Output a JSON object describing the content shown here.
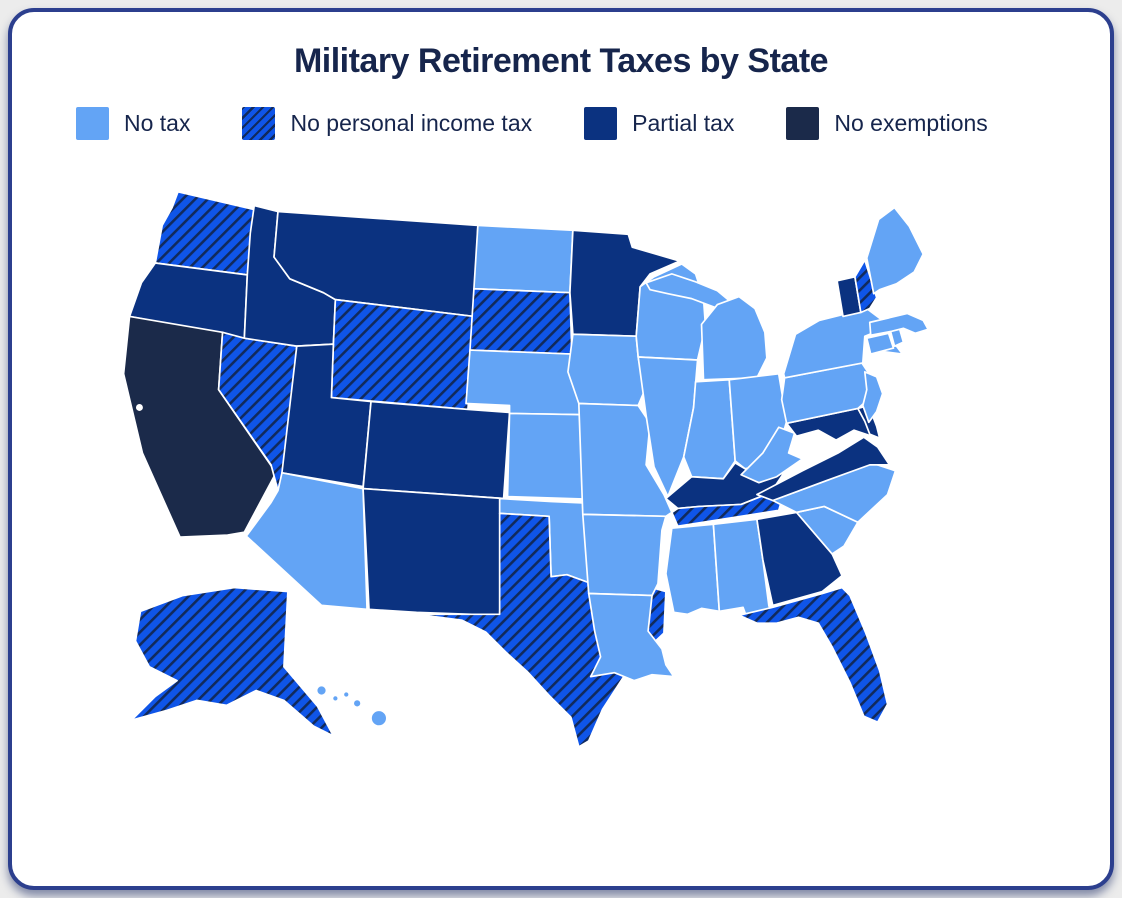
{
  "title": "Military Retirement Taxes by State",
  "legend": [
    {
      "id": "no_tax",
      "label": "No tax",
      "color": "#63A4F5",
      "hatched": false
    },
    {
      "id": "no_personal_income_tax",
      "label": "No personal income tax",
      "color": "#0F55E8",
      "hatched": true,
      "hatch_color": "#112A5C",
      "pattern": "diagonal-stripes"
    },
    {
      "id": "partial_tax",
      "label": "Partial tax",
      "color": "#0B3280",
      "hatched": false
    },
    {
      "id": "no_exemptions",
      "label": "No exemptions",
      "color": "#1B2A4A",
      "hatched": false
    }
  ],
  "colors": {
    "ink": "#16254c",
    "card_border": "#2c3f8e",
    "page_bg": "#ececec",
    "state_border": "#ffffff"
  },
  "map": {
    "states": [
      {
        "abbr": "WA",
        "name": "Washington",
        "category": "no_personal_income_tax"
      },
      {
        "abbr": "OR",
        "name": "Oregon",
        "category": "partial_tax"
      },
      {
        "abbr": "CA",
        "name": "California",
        "category": "no_exemptions"
      },
      {
        "abbr": "NV",
        "name": "Nevada",
        "category": "no_personal_income_tax"
      },
      {
        "abbr": "ID",
        "name": "Idaho",
        "category": "partial_tax"
      },
      {
        "abbr": "MT",
        "name": "Montana",
        "category": "partial_tax"
      },
      {
        "abbr": "WY",
        "name": "Wyoming",
        "category": "no_personal_income_tax"
      },
      {
        "abbr": "UT",
        "name": "Utah",
        "category": "partial_tax"
      },
      {
        "abbr": "CO",
        "name": "Colorado",
        "category": "partial_tax"
      },
      {
        "abbr": "AZ",
        "name": "Arizona",
        "category": "no_tax"
      },
      {
        "abbr": "NM",
        "name": "New Mexico",
        "category": "partial_tax"
      },
      {
        "abbr": "ND",
        "name": "North Dakota",
        "category": "no_tax"
      },
      {
        "abbr": "SD",
        "name": "South Dakota",
        "category": "no_personal_income_tax"
      },
      {
        "abbr": "NE",
        "name": "Nebraska",
        "category": "no_tax"
      },
      {
        "abbr": "KS",
        "name": "Kansas",
        "category": "no_tax"
      },
      {
        "abbr": "OK",
        "name": "Oklahoma",
        "category": "no_tax"
      },
      {
        "abbr": "TX",
        "name": "Texas",
        "category": "no_personal_income_tax"
      },
      {
        "abbr": "MN",
        "name": "Minnesota",
        "category": "partial_tax"
      },
      {
        "abbr": "IA",
        "name": "Iowa",
        "category": "no_tax"
      },
      {
        "abbr": "MO",
        "name": "Missouri",
        "category": "no_tax"
      },
      {
        "abbr": "AR",
        "name": "Arkansas",
        "category": "no_tax"
      },
      {
        "abbr": "LA",
        "name": "Louisiana",
        "category": "no_tax"
      },
      {
        "abbr": "WI",
        "name": "Wisconsin",
        "category": "no_tax"
      },
      {
        "abbr": "IL",
        "name": "Illinois",
        "category": "no_tax"
      },
      {
        "abbr": "MI",
        "name": "Michigan",
        "category": "no_tax"
      },
      {
        "abbr": "IN",
        "name": "Indiana",
        "category": "no_tax"
      },
      {
        "abbr": "OH",
        "name": "Ohio",
        "category": "no_tax"
      },
      {
        "abbr": "KY",
        "name": "Kentucky",
        "category": "partial_tax"
      },
      {
        "abbr": "TN",
        "name": "Tennessee",
        "category": "no_personal_income_tax"
      },
      {
        "abbr": "MS",
        "name": "Mississippi",
        "category": "no_tax"
      },
      {
        "abbr": "AL",
        "name": "Alabama",
        "category": "no_tax"
      },
      {
        "abbr": "GA",
        "name": "Georgia",
        "category": "partial_tax"
      },
      {
        "abbr": "FL",
        "name": "Florida",
        "category": "no_personal_income_tax"
      },
      {
        "abbr": "SC",
        "name": "South Carolina",
        "category": "no_tax"
      },
      {
        "abbr": "NC",
        "name": "North Carolina",
        "category": "no_tax"
      },
      {
        "abbr": "VA",
        "name": "Virginia",
        "category": "partial_tax"
      },
      {
        "abbr": "WV",
        "name": "West Virginia",
        "category": "no_tax"
      },
      {
        "abbr": "MD",
        "name": "Maryland",
        "category": "partial_tax"
      },
      {
        "abbr": "DE",
        "name": "Delaware",
        "category": "partial_tax"
      },
      {
        "abbr": "PA",
        "name": "Pennsylvania",
        "category": "no_tax"
      },
      {
        "abbr": "NJ",
        "name": "New Jersey",
        "category": "no_tax"
      },
      {
        "abbr": "NY",
        "name": "New York",
        "category": "no_tax"
      },
      {
        "abbr": "CT",
        "name": "Connecticut",
        "category": "no_tax"
      },
      {
        "abbr": "RI",
        "name": "Rhode Island",
        "category": "no_tax"
      },
      {
        "abbr": "MA",
        "name": "Massachusetts",
        "category": "no_tax"
      },
      {
        "abbr": "VT",
        "name": "Vermont",
        "category": "partial_tax"
      },
      {
        "abbr": "NH",
        "name": "New Hampshire",
        "category": "no_personal_income_tax"
      },
      {
        "abbr": "ME",
        "name": "Maine",
        "category": "no_tax"
      },
      {
        "abbr": "AK",
        "name": "Alaska",
        "category": "no_personal_income_tax"
      },
      {
        "abbr": "HI",
        "name": "Hawaii",
        "category": "no_tax"
      }
    ]
  }
}
